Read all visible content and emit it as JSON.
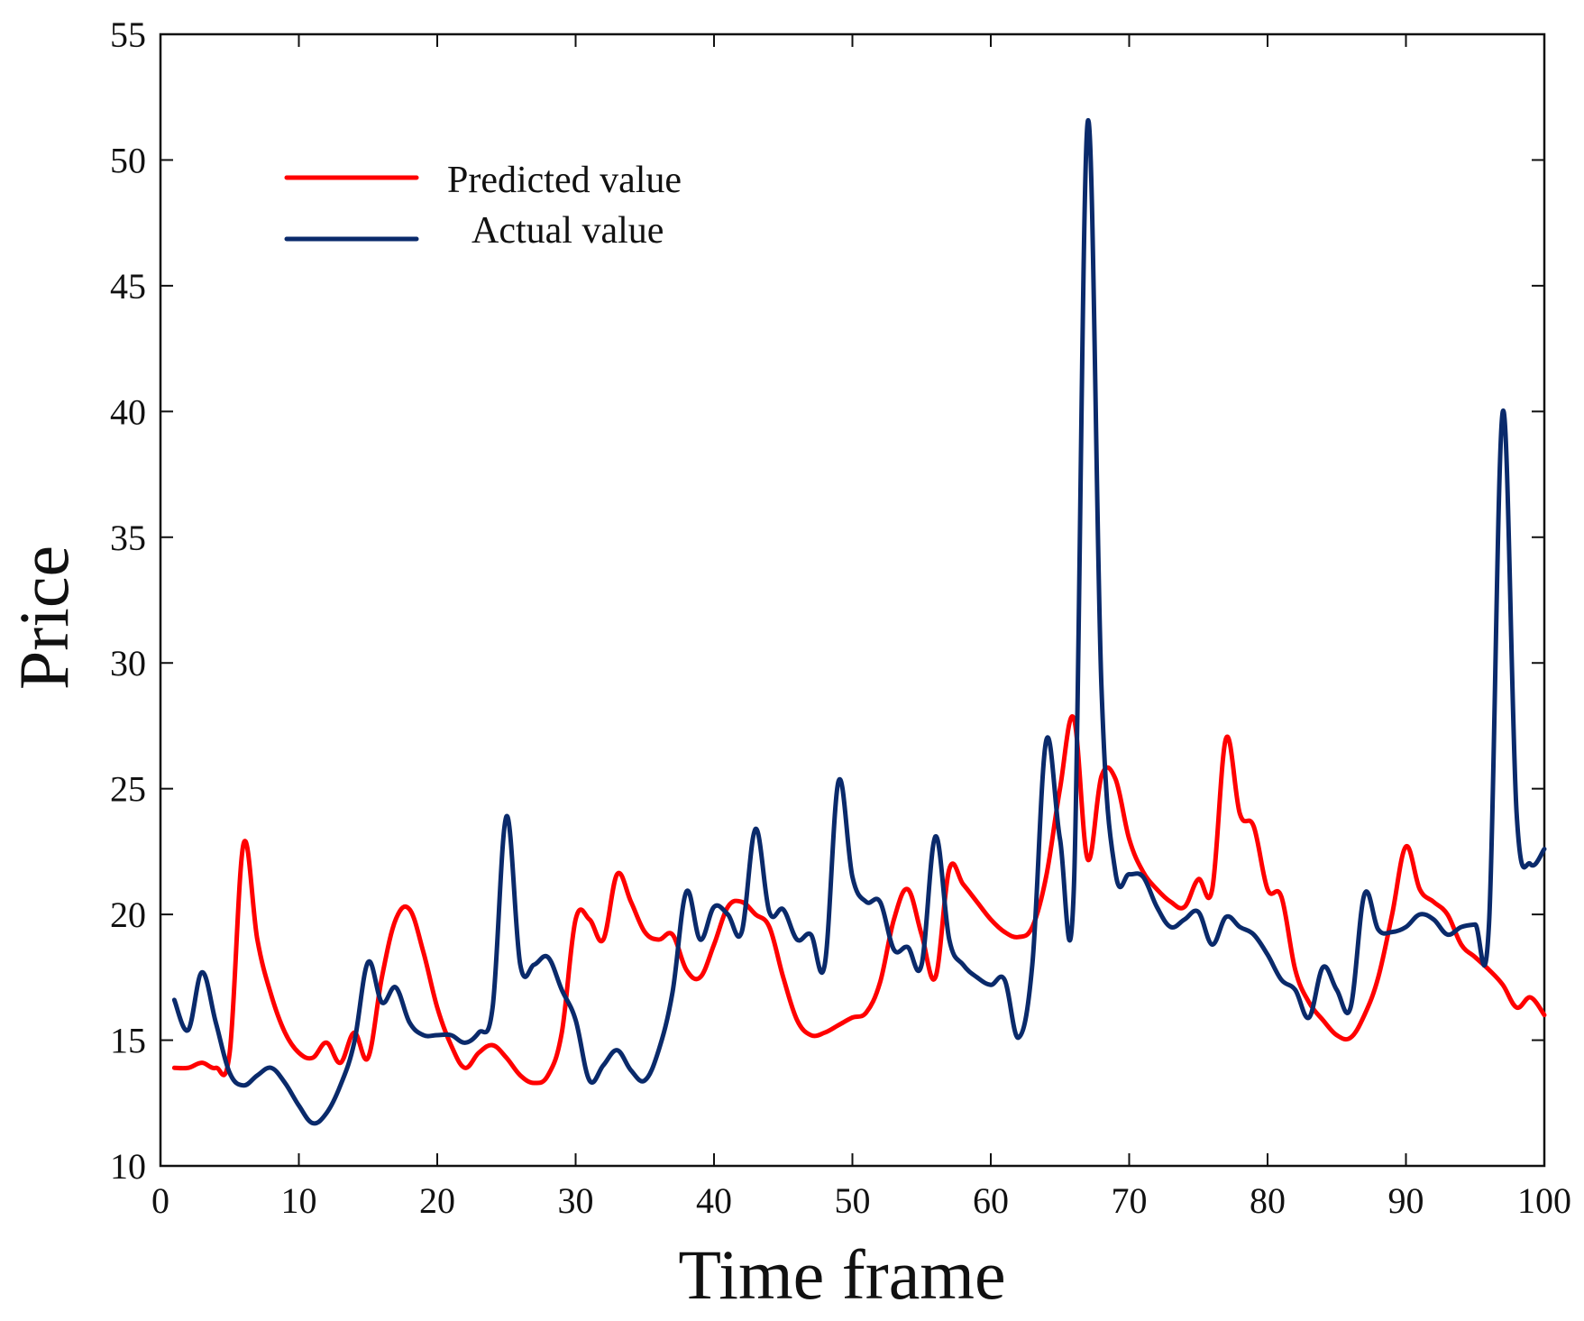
{
  "chart_data": {
    "type": "line",
    "title": "",
    "xlabel": "Time frame",
    "ylabel": "Price",
    "xlim": [
      0,
      100
    ],
    "ylim": [
      10,
      55
    ],
    "xticks": [
      0,
      10,
      20,
      30,
      40,
      50,
      60,
      70,
      80,
      90,
      100
    ],
    "yticks": [
      10,
      15,
      20,
      25,
      30,
      35,
      40,
      45,
      50,
      55
    ],
    "grid": false,
    "legend_position": "top-left",
    "series": [
      {
        "name": "Predicted value",
        "color": "#ff0000",
        "x": [
          1,
          2,
          3,
          4,
          5,
          6,
          7,
          8,
          9,
          10,
          11,
          12,
          13,
          14,
          15,
          16,
          17,
          18,
          19,
          20,
          21,
          22,
          23,
          24,
          25,
          26,
          27,
          28,
          29,
          30,
          31,
          32,
          33,
          34,
          35,
          36,
          37,
          38,
          39,
          40,
          41,
          42,
          43,
          44,
          45,
          46,
          47,
          48,
          49,
          50,
          51,
          52,
          53,
          54,
          55,
          56,
          57,
          58,
          59,
          60,
          61,
          62,
          63,
          64,
          65,
          66,
          67,
          68,
          69,
          70,
          71,
          72,
          73,
          74,
          75,
          76,
          77,
          78,
          79,
          80,
          81,
          82,
          83,
          84,
          85,
          86,
          87,
          88,
          89,
          90,
          91,
          92,
          93,
          94,
          95,
          96,
          97,
          98,
          99,
          100
        ],
        "values": [
          13.9,
          13.9,
          14.1,
          13.9,
          14.5,
          22.8,
          19.0,
          16.8,
          15.3,
          14.5,
          14.3,
          14.9,
          14.1,
          15.3,
          14.3,
          17.5,
          19.8,
          20.2,
          18.5,
          16.3,
          14.8,
          13.9,
          14.5,
          14.8,
          14.3,
          13.6,
          13.3,
          13.6,
          15.3,
          19.8,
          19.8,
          19.0,
          21.6,
          20.5,
          19.3,
          19.0,
          19.2,
          17.8,
          17.5,
          18.8,
          20.3,
          20.5,
          20.0,
          19.5,
          17.5,
          15.8,
          15.2,
          15.3,
          15.6,
          15.9,
          16.1,
          17.3,
          19.8,
          21.0,
          19.2,
          17.5,
          21.8,
          21.2,
          20.5,
          19.8,
          19.3,
          19.1,
          19.5,
          21.5,
          25.0,
          27.8,
          22.2,
          25.5,
          25.4,
          23.0,
          21.7,
          21.0,
          20.5,
          20.3,
          21.4,
          21.0,
          27.0,
          24.0,
          23.5,
          21.0,
          20.7,
          17.8,
          16.5,
          15.8,
          15.2,
          15.1,
          16.0,
          17.5,
          20.0,
          22.7,
          21.0,
          20.5,
          20.0,
          18.8,
          18.3,
          17.8,
          17.2,
          16.3,
          16.7,
          16.0
        ]
      },
      {
        "name": "Actual value",
        "color": "#0a2a6b",
        "x": [
          1,
          2,
          3,
          4,
          5,
          6,
          7,
          8,
          9,
          10,
          11,
          12,
          13,
          14,
          15,
          16,
          17,
          18,
          19,
          20,
          21,
          22,
          23,
          24,
          25,
          26,
          27,
          28,
          29,
          30,
          31,
          32,
          33,
          34,
          35,
          36,
          37,
          38,
          39,
          40,
          41,
          42,
          43,
          44,
          45,
          46,
          47,
          48,
          49,
          50,
          51,
          52,
          53,
          54,
          55,
          56,
          57,
          58,
          59,
          60,
          61,
          62,
          63,
          64,
          65,
          66,
          67,
          68,
          69,
          70,
          71,
          72,
          73,
          74,
          75,
          76,
          77,
          78,
          79,
          80,
          81,
          82,
          83,
          84,
          85,
          86,
          87,
          88,
          89,
          90,
          91,
          92,
          93,
          94,
          95,
          96,
          97,
          98,
          99,
          100
        ],
        "values": [
          16.6,
          15.4,
          17.7,
          15.7,
          13.7,
          13.2,
          13.6,
          13.9,
          13.3,
          12.4,
          11.7,
          12.1,
          13.2,
          14.9,
          18.1,
          16.5,
          17.1,
          15.7,
          15.2,
          15.2,
          15.2,
          14.9,
          15.3,
          16.3,
          23.9,
          18.0,
          18.0,
          18.3,
          17.0,
          15.8,
          13.4,
          14.0,
          14.6,
          13.8,
          13.4,
          14.6,
          16.9,
          20.9,
          19.0,
          20.3,
          20.0,
          19.3,
          23.4,
          20.1,
          20.2,
          19.0,
          19.2,
          18.0,
          25.3,
          21.5,
          20.5,
          20.5,
          18.6,
          18.7,
          18.0,
          23.1,
          19.0,
          18.0,
          17.5,
          17.2,
          17.4,
          15.1,
          18.0,
          26.9,
          23.0,
          21.0,
          51.5,
          29.0,
          21.7,
          21.6,
          21.5,
          20.3,
          19.5,
          19.8,
          20.1,
          18.8,
          19.9,
          19.5,
          19.2,
          18.4,
          17.4,
          17.0,
          15.9,
          17.9,
          17.0,
          16.3,
          20.8,
          19.4,
          19.3,
          19.5,
          20.0,
          19.8,
          19.2,
          19.5,
          19.6,
          19.6,
          40.0,
          24.0,
          22.0,
          22.6
        ]
      }
    ]
  }
}
